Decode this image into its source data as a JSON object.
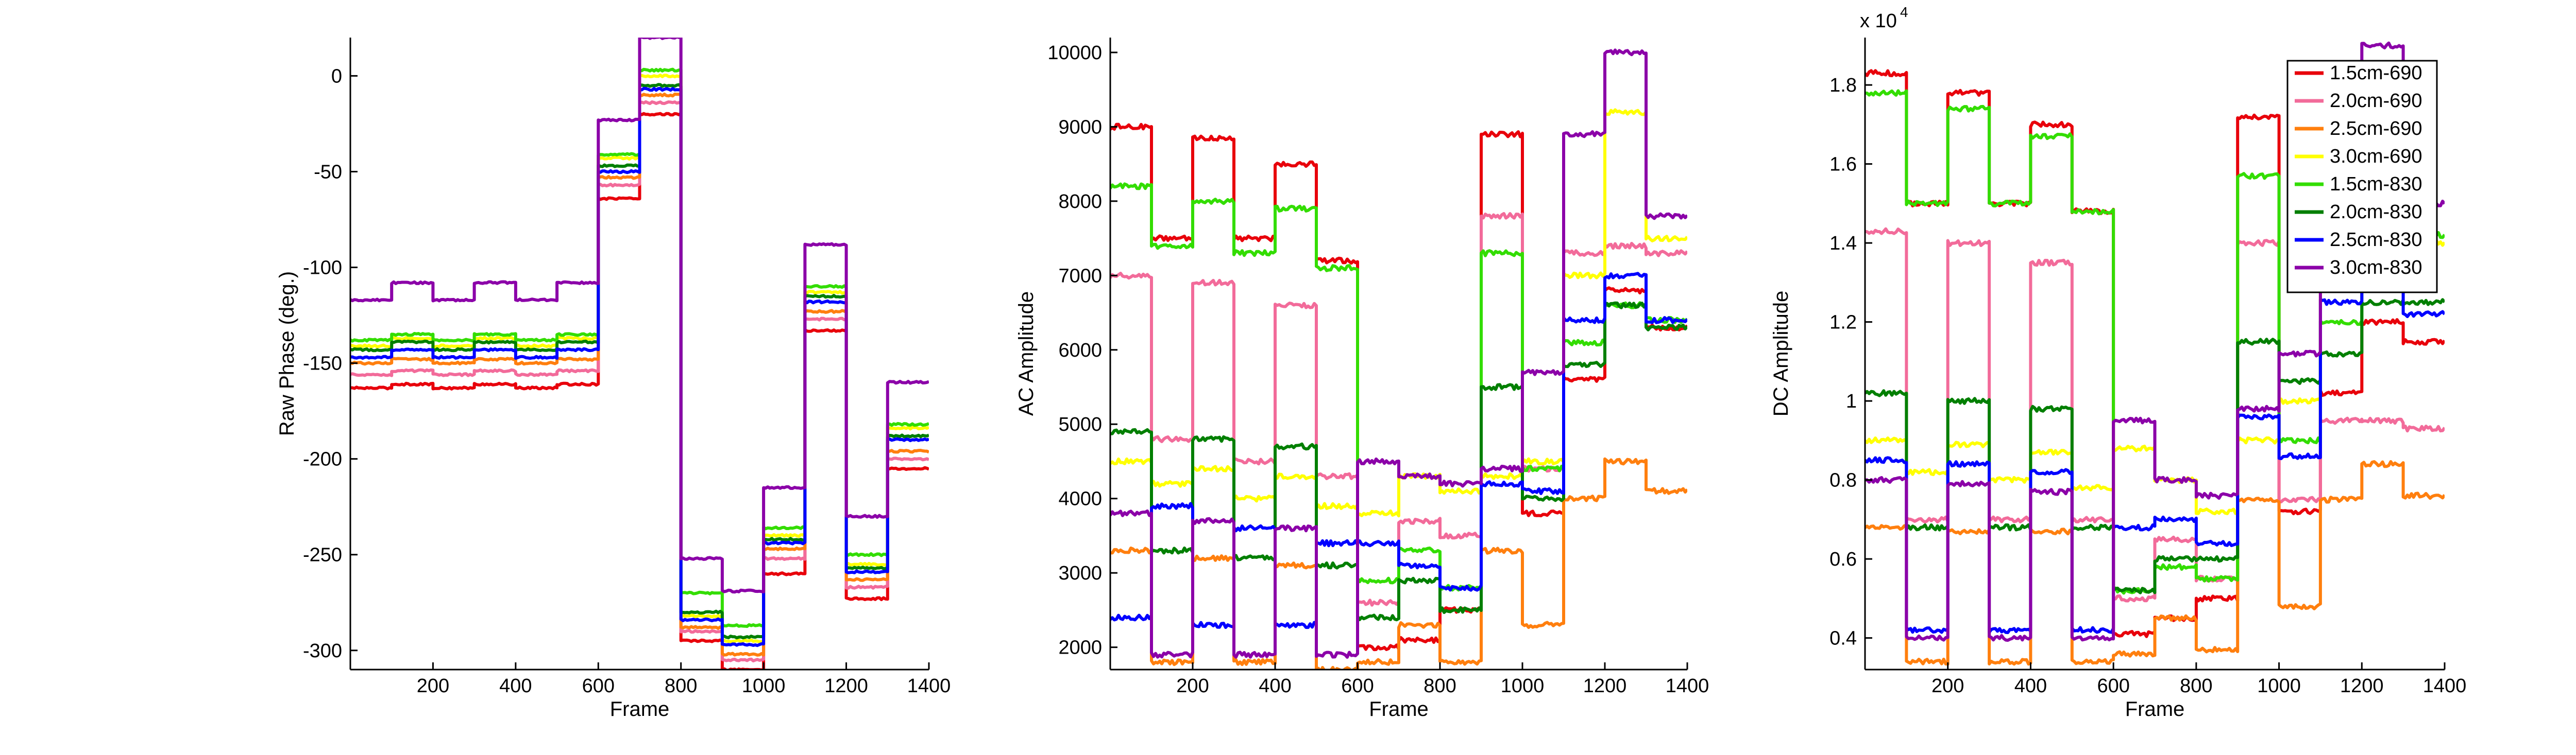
{
  "chart_data": [
    {
      "type": "line",
      "name": "raw-phase",
      "xlabel": "Frame",
      "ylabel": "Raw Phase (deg.)",
      "xlim": [
        0,
        1400
      ],
      "ylim": [
        -310,
        20
      ],
      "xticks": [
        200,
        400,
        600,
        800,
        1000,
        1200,
        1400
      ],
      "yticks": [
        0,
        -50,
        -100,
        -150,
        -200,
        -250,
        -300
      ],
      "levels": [
        [
          -163,
          -161,
          -163,
          -161,
          -163,
          -161,
          -64,
          -20,
          -295,
          -310,
          -260,
          -133,
          -273,
          -205
        ],
        [
          -156,
          -154,
          -156,
          -154,
          -156,
          -154,
          -57,
          -14,
          -290,
          -305,
          -252,
          -127,
          -267,
          -200
        ],
        [
          -150,
          -148,
          -150,
          -148,
          -150,
          -148,
          -53,
          -10,
          -288,
          -302,
          -247,
          -123,
          -263,
          -196
        ],
        [
          -141,
          -137,
          -141,
          -137,
          -141,
          -137,
          -43,
          0,
          -282,
          -295,
          -240,
          -113,
          -255,
          -184
        ],
        [
          -138,
          -135,
          -138,
          -135,
          -138,
          -135,
          -41,
          3,
          -270,
          -287,
          -236,
          -110,
          -250,
          -182
        ],
        [
          -143,
          -139,
          -143,
          -139,
          -143,
          -139,
          -47,
          -5,
          -280,
          -293,
          -242,
          -115,
          -257,
          -188
        ],
        [
          -147,
          -143,
          -147,
          -143,
          -147,
          -143,
          -50,
          -7,
          -284,
          -297,
          -244,
          -118,
          -259,
          -190
        ],
        [
          -117,
          -108,
          -117,
          -108,
          -117,
          -108,
          -23,
          20,
          -252,
          -269,
          -215,
          -88,
          -230,
          -160
        ]
      ]
    },
    {
      "type": "line",
      "name": "ac-amplitude",
      "xlabel": "Frame",
      "ylabel": "AC Amplitude",
      "xlim": [
        0,
        1400
      ],
      "ylim": [
        1700,
        10200
      ],
      "xticks": [
        200,
        400,
        600,
        800,
        1000,
        1200,
        1400
      ],
      "yticks": [
        2000,
        3000,
        4000,
        5000,
        6000,
        7000,
        8000,
        9000,
        10000
      ],
      "levels": [
        [
          9000,
          7500,
          8850,
          7500,
          8500,
          7200,
          2000,
          2100,
          2500,
          8900,
          3800,
          5600,
          6800,
          6300
        ],
        [
          7000,
          4800,
          6900,
          4500,
          6600,
          4300,
          2600,
          3700,
          3500,
          7800,
          4400,
          7300,
          7400,
          7300
        ],
        [
          3300,
          1800,
          3200,
          1800,
          3100,
          1700,
          1800,
          2300,
          1800,
          3300,
          2300,
          4000,
          4500,
          4100
        ],
        [
          4500,
          4200,
          4400,
          4000,
          4300,
          3900,
          3800,
          4300,
          4100,
          4300,
          4500,
          7000,
          9200,
          7500
        ],
        [
          8200,
          7400,
          8000,
          7300,
          7900,
          7100,
          2900,
          3300,
          2800,
          7300,
          4400,
          6100,
          6600,
          6400
        ],
        [
          4900,
          3300,
          4800,
          3200,
          4700,
          3100,
          2400,
          2900,
          2500,
          5500,
          4000,
          5800,
          6600,
          6300
        ],
        [
          2400,
          3900,
          2300,
          3600,
          2300,
          3400,
          3400,
          3100,
          2800,
          4200,
          4100,
          6400,
          7000,
          6400
        ],
        [
          3800,
          1900,
          3700,
          1900,
          3600,
          1900,
          4500,
          4300,
          4200,
          4400,
          5700,
          8900,
          10000,
          7800
        ]
      ]
    },
    {
      "type": "line",
      "name": "dc-amplitude",
      "xlabel": "Frame",
      "ylabel": "DC Amplitude",
      "y_exponent_label": "x 10",
      "y_exponent_power": "4",
      "xlim": [
        0,
        1400
      ],
      "ylim": [
        0.32,
        1.92
      ],
      "xticks": [
        200,
        400,
        600,
        800,
        1000,
        1200,
        1400
      ],
      "yticks": [
        0.4,
        0.6,
        0.8,
        1,
        1.2,
        1.4,
        1.6,
        1.8
      ],
      "ytick_labels": [
        "0.4",
        "0.6",
        "0.8",
        "1",
        "1.2",
        "1.4",
        "1.6",
        "1.8"
      ],
      "levels": [
        [
          1.83,
          1.5,
          1.78,
          1.5,
          1.7,
          1.48,
          0.41,
          0.45,
          0.5,
          1.72,
          0.72,
          1.02,
          1.2,
          1.15
        ],
        [
          1.43,
          0.7,
          1.4,
          0.7,
          1.35,
          0.7,
          0.5,
          0.65,
          0.55,
          1.4,
          0.75,
          0.95,
          0.95,
          0.93
        ],
        [
          0.68,
          0.34,
          0.67,
          0.34,
          0.67,
          0.34,
          0.36,
          0.45,
          0.37,
          0.75,
          0.48,
          0.75,
          0.84,
          0.76
        ],
        [
          0.9,
          0.82,
          0.89,
          0.8,
          0.87,
          0.78,
          0.88,
          0.8,
          0.72,
          0.9,
          1.0,
          1.3,
          1.4,
          1.4
        ],
        [
          1.78,
          1.5,
          1.74,
          1.5,
          1.67,
          1.48,
          0.52,
          0.58,
          0.55,
          1.57,
          0.9,
          1.2,
          1.38,
          1.42
        ],
        [
          1.02,
          0.68,
          1.0,
          0.68,
          0.98,
          0.68,
          0.52,
          0.6,
          0.6,
          1.15,
          1.05,
          1.12,
          1.25,
          1.25
        ],
        [
          0.85,
          0.42,
          0.84,
          0.42,
          0.82,
          0.42,
          0.68,
          0.7,
          0.64,
          0.96,
          0.86,
          1.25,
          1.35,
          1.22
        ],
        [
          0.8,
          0.4,
          0.79,
          0.4,
          0.77,
          0.4,
          0.95,
          0.8,
          0.76,
          0.98,
          1.12,
          1.6,
          1.9,
          1.5
        ]
      ]
    }
  ],
  "series": [
    {
      "name": "1.5cm-690",
      "color": "#e8000b"
    },
    {
      "name": "2.0cm-690",
      "color": "#f26b9a"
    },
    {
      "name": "2.5cm-690",
      "color": "#ff7f0e"
    },
    {
      "name": "3.0cm-690",
      "color": "#ffff00"
    },
    {
      "name": "1.5cm-830",
      "color": "#33dd00"
    },
    {
      "name": "2.0cm-830",
      "color": "#007f00"
    },
    {
      "name": "2.5cm-830",
      "color": "#0000ff"
    },
    {
      "name": "3.0cm-830",
      "color": "#8b00a8"
    }
  ],
  "legend": {
    "placement": "top-right",
    "panel": "dc-amplitude"
  },
  "grid": false
}
